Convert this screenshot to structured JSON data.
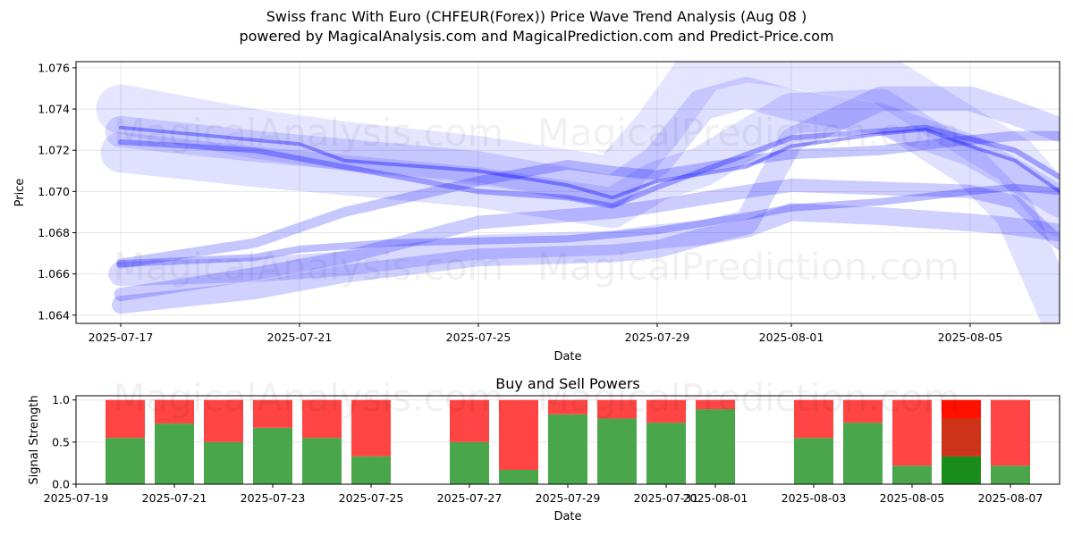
{
  "title": "Swiss franc With Euro (CHFEUR(Forex)) Price Wave Trend Analysis (Aug 08 )",
  "subtitle": "powered by MagicalAnalysis.com and MagicalPrediction.com and Predict-Price.com",
  "watermarks": [
    "MagicalAnalysis.com",
    "MagicalPrediction.com"
  ],
  "chart_data": [
    {
      "type": "line",
      "title": "",
      "xlabel": "Date",
      "ylabel": "Price",
      "x_ticks": [
        "2025-07-17",
        "2025-07-21",
        "2025-07-25",
        "2025-07-29",
        "2025-08-01",
        "2025-08-05"
      ],
      "y_ticks": [
        "1.064",
        "1.066",
        "1.068",
        "1.070",
        "1.072",
        "1.074",
        "1.076"
      ],
      "xlim": [
        "2025-07-16",
        "2025-08-07"
      ],
      "ylim": [
        1.0636,
        1.0763
      ],
      "grid": true,
      "color": "#0000ff",
      "series": [
        {
          "x": [
            "2025-07-17",
            "2025-07-20",
            "2025-07-21",
            "2025-07-22",
            "2025-07-25",
            "2025-07-27",
            "2025-07-28",
            "2025-07-29",
            "2025-07-31",
            "2025-08-01",
            "2025-08-03",
            "2025-08-04",
            "2025-08-05",
            "2025-08-06",
            "2025-08-07"
          ],
          "y": [
            1.0731,
            1.0725,
            1.0723,
            1.0715,
            1.071,
            1.0703,
            1.0697,
            1.0705,
            1.0712,
            1.0722,
            1.0728,
            1.073,
            1.0722,
            1.0715,
            1.07
          ]
        },
        {
          "x": [
            "2025-07-17",
            "2025-07-20",
            "2025-07-22",
            "2025-07-25",
            "2025-07-27",
            "2025-07-28",
            "2025-07-29",
            "2025-07-31",
            "2025-08-01",
            "2025-08-04",
            "2025-08-06",
            "2025-08-07"
          ],
          "y": [
            1.0724,
            1.072,
            1.0712,
            1.07,
            1.0697,
            1.0693,
            1.0702,
            1.0718,
            1.0726,
            1.0731,
            1.072,
            1.0707
          ]
        },
        {
          "x": [
            "2025-07-17",
            "2025-07-20",
            "2025-07-21",
            "2025-07-23",
            "2025-07-25",
            "2025-07-27",
            "2025-07-28",
            "2025-07-29",
            "2025-07-31",
            "2025-08-01",
            "2025-08-03",
            "2025-08-05",
            "2025-08-06",
            "2025-08-07"
          ],
          "y": [
            1.0665,
            1.0668,
            1.0672,
            1.0675,
            1.0676,
            1.0677,
            1.0679,
            1.0681,
            1.0688,
            1.0692,
            1.0695,
            1.07,
            1.0702,
            1.07
          ]
        },
        {
          "x": [
            "2025-07-17",
            "2025-07-20",
            "2025-07-22",
            "2025-07-25",
            "2025-07-27",
            "2025-07-28",
            "2025-07-29",
            "2025-07-31",
            "2025-08-01",
            "2025-08-03",
            "2025-08-05",
            "2025-08-06",
            "2025-08-07"
          ],
          "y": [
            1.0665,
            1.0675,
            1.069,
            1.0705,
            1.0713,
            1.071,
            1.0708,
            1.0715,
            1.0718,
            1.072,
            1.0725,
            1.0727,
            1.0727
          ]
        },
        {
          "x": [
            "2025-07-17",
            "2025-07-20",
            "2025-07-22",
            "2025-07-25",
            "2025-07-28",
            "2025-07-29",
            "2025-07-31",
            "2025-08-01",
            "2025-08-05",
            "2025-08-06",
            "2025-08-07"
          ],
          "y": [
            1.065,
            1.066,
            1.0668,
            1.0685,
            1.069,
            1.0693,
            1.07,
            1.0703,
            1.07,
            1.0695,
            1.0675
          ]
        },
        {
          "x": [
            "2025-07-17",
            "2025-07-20",
            "2025-07-22",
            "2025-07-25",
            "2025-07-28",
            "2025-07-29",
            "2025-07-30",
            "2025-07-31",
            "2025-08-01",
            "2025-08-03",
            "2025-08-05",
            "2025-08-06",
            "2025-08-07"
          ],
          "y": [
            1.0645,
            1.0652,
            1.066,
            1.0668,
            1.067,
            1.0672,
            1.0678,
            1.0682,
            1.069,
            1.0688,
            1.0685,
            1.0683,
            1.068
          ]
        },
        {
          "x": [
            "2025-07-17",
            "2025-07-20",
            "2025-07-22",
            "2025-07-25",
            "2025-07-28",
            "2025-07-29",
            "2025-07-30",
            "2025-07-31",
            "2025-08-01",
            "2025-08-03",
            "2025-08-05",
            "2025-08-06",
            "2025-08-07"
          ],
          "y": [
            1.066,
            1.0662,
            1.0665,
            1.0673,
            1.0675,
            1.0678,
            1.068,
            1.0685,
            1.0725,
            1.0745,
            1.0745,
            1.0738,
            1.073
          ]
        },
        {
          "x": [
            "2025-07-17",
            "2025-07-20",
            "2025-07-22",
            "2025-07-25",
            "2025-07-28",
            "2025-07-29",
            "2025-07-30",
            "2025-07-31",
            "2025-08-01",
            "2025-08-03",
            "2025-08-05",
            "2025-08-06",
            "2025-08-07"
          ],
          "y": [
            1.0729,
            1.0722,
            1.0718,
            1.0712,
            1.07,
            1.0715,
            1.0742,
            1.0748,
            1.0742,
            1.0735,
            1.072,
            1.0708,
            1.0695
          ]
        },
        {
          "x": [
            "2025-07-17",
            "2025-07-20",
            "2025-07-22",
            "2025-07-25",
            "2025-07-28",
            "2025-07-29",
            "2025-07-30",
            "2025-07-31",
            "2025-08-01",
            "2025-08-03",
            "2025-08-05",
            "2025-08-06",
            "2025-08-07"
          ],
          "y": [
            1.0719,
            1.0712,
            1.0708,
            1.0702,
            1.0692,
            1.0705,
            1.0712,
            1.0725,
            1.0738,
            1.074,
            1.0712,
            1.069,
            1.064
          ]
        },
        {
          "x": [
            "2025-07-17",
            "2025-07-20",
            "2025-07-22",
            "2025-07-25",
            "2025-07-28",
            "2025-07-29",
            "2025-07-30",
            "2025-07-31",
            "2025-08-01",
            "2025-08-03",
            "2025-08-05",
            "2025-08-06",
            "2025-08-07"
          ],
          "y": [
            1.074,
            1.0728,
            1.0722,
            1.0715,
            1.0705,
            1.073,
            1.076,
            1.0765,
            1.0762,
            1.0755,
            1.0728,
            1.0715,
            1.069
          ]
        }
      ]
    },
    {
      "type": "bar",
      "title": "Buy and Sell Powers",
      "xlabel": "Date",
      "ylabel": "Signal Strength",
      "x_ticks": [
        "2025-07-19",
        "2025-07-21",
        "2025-07-23",
        "2025-07-25",
        "2025-07-27",
        "2025-07-29",
        "2025-07-31",
        "2025-08-01",
        "2025-08-03",
        "2025-08-05",
        "2025-08-07"
      ],
      "y_ticks": [
        "0.0",
        "0.5",
        "1.0"
      ],
      "xlim": [
        "2025-07-19",
        "2025-08-08"
      ],
      "ylim": [
        0,
        1.05
      ],
      "stacked": true,
      "series": [
        {
          "name": "Buy",
          "color": "#4aa64a"
        },
        {
          "name": "Sell",
          "color": "#ff4444"
        }
      ],
      "categories": [
        "2025-07-20",
        "2025-07-21",
        "2025-07-22",
        "2025-07-23",
        "2025-07-24",
        "2025-07-25",
        "2025-07-27",
        "2025-07-28",
        "2025-07-29",
        "2025-07-30",
        "2025-07-31",
        "2025-08-01",
        "2025-08-03",
        "2025-08-04",
        "2025-08-05",
        "2025-08-06",
        "2025-08-07"
      ],
      "buy": [
        0.55,
        0.72,
        0.5,
        0.67,
        0.55,
        0.33,
        0.5,
        0.17,
        0.83,
        0.78,
        0.73,
        0.89,
        0.55,
        0.73,
        0.22,
        0.33,
        0.22
      ],
      "sell": [
        0.45,
        0.28,
        0.5,
        0.33,
        0.45,
        0.67,
        0.5,
        0.83,
        0.17,
        0.22,
        0.27,
        0.11,
        0.45,
        0.27,
        0.78,
        0.67,
        0.78
      ],
      "highlight": {
        "category": "2025-08-06",
        "buy_color": "#1a8c1a",
        "sell_colors": [
          "#cc3319",
          "#ff1100"
        ],
        "sell_split": [
          0.45,
          0.22
        ]
      }
    }
  ]
}
